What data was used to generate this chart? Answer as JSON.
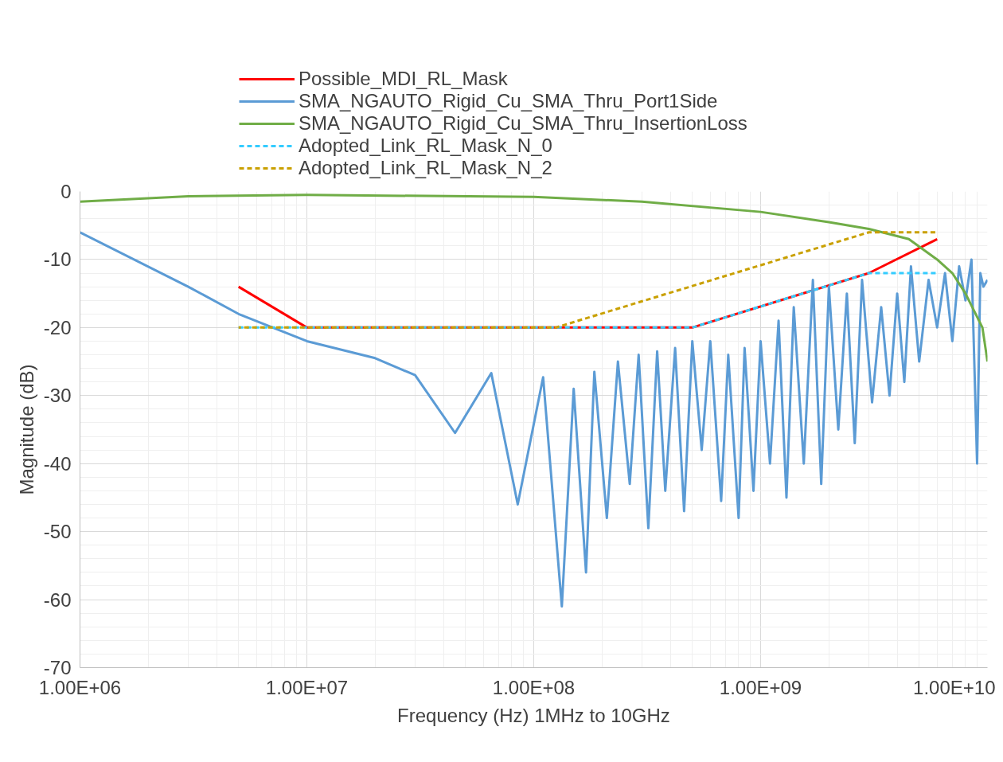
{
  "chart_data": {
    "type": "line",
    "xlabel": "Frequency (Hz) 1MHz to 10GHz",
    "ylabel": "Magnitude (dB)",
    "log": "x",
    "grid": true,
    "legend": "top",
    "marker": "none",
    "xlim": [
      1000000,
      10000000000
    ],
    "xticks": [
      {
        "value": 1000000,
        "label": "1.00E+06"
      },
      {
        "value": 10000000,
        "label": "1.00E+07"
      },
      {
        "value": 100000000,
        "label": "1.00E+08"
      },
      {
        "value": 1000000000,
        "label": "1.00E+09"
      },
      {
        "value": 10000000000,
        "label": "1.00E+10"
      }
    ],
    "ylim": [
      -70,
      0
    ],
    "yticks": [
      0,
      -10,
      -20,
      -30,
      -40,
      -50,
      -60,
      -70
    ],
    "series": [
      {
        "name": "Possible_MDI_RL_Mask",
        "color": "#ff0000",
        "line_style": "solid",
        "x": [
          5000000,
          10000000,
          500000000,
          3000000000,
          6000000000
        ],
        "values": [
          -14,
          -20,
          -20,
          -12,
          -7
        ]
      },
      {
        "name": "SMA_NGAUTO_Rigid_Cu_SMA_Thru_Port1Side",
        "color": "#5b9bd5",
        "line_style": "solid",
        "x": [
          1000000,
          3000000,
          5000000,
          10000000,
          20000000,
          30000000,
          45000000,
          65000000,
          85000000,
          110000000,
          133000000,
          150000000,
          170000000,
          185000000,
          210000000,
          235000000,
          265000000,
          290000000,
          320000000,
          350000000,
          380000000,
          420000000,
          460000000,
          500000000,
          550000000,
          600000000,
          670000000,
          720000000,
          800000000,
          850000000,
          930000000,
          1000000000,
          1100000000,
          1200000000,
          1300000000,
          1400000000,
          1550000000,
          1700000000,
          1850000000,
          2000000000,
          2200000000,
          2400000000,
          2600000000,
          2800000000,
          3100000000,
          3400000000,
          3700000000,
          4000000000,
          4300000000,
          4600000000,
          5000000000,
          5500000000,
          6000000000,
          6500000000,
          7000000000,
          7500000000,
          8000000000,
          8500000000,
          9000000000,
          9300000000,
          9600000000,
          10000000000
        ],
        "values": [
          -6,
          -14,
          -18,
          -22,
          -24.5,
          -27,
          -35.5,
          -26.7,
          -46,
          -27.3,
          -61,
          -29,
          -56,
          -26.5,
          -48,
          -25,
          -43,
          -24,
          -49.5,
          -23.5,
          -44,
          -23,
          -47,
          -22,
          -38,
          -22,
          -45.5,
          -24,
          -48,
          -23,
          -44,
          -22,
          -40,
          -19,
          -45,
          -17,
          -40,
          -13,
          -43,
          -14,
          -35,
          -15,
          -37,
          -13,
          -31,
          -17,
          -30,
          -15,
          -28,
          -11,
          -25,
          -13,
          -20,
          -12,
          -22,
          -11,
          -16,
          -10,
          -40,
          -12,
          -14,
          -13
        ]
      },
      {
        "name": "SMA_NGAUTO_Rigid_Cu_SMA_Thru_InsertionLoss",
        "color": "#70ad47",
        "line_style": "solid",
        "x": [
          1000000,
          3000000,
          10000000,
          100000000,
          300000000,
          1000000000,
          2000000000,
          3000000000,
          4500000000,
          6000000000,
          7000000000,
          8000000000,
          9500000000,
          10000000000
        ],
        "values": [
          -1.5,
          -0.7,
          -0.5,
          -0.8,
          -1.5,
          -3,
          -4.5,
          -5.5,
          -7,
          -10,
          -12,
          -15,
          -20,
          -25
        ]
      },
      {
        "name": "Adopted_Link_RL_Mask_N_0",
        "color": "#33ccff",
        "line_style": "dashed",
        "x": [
          5000000,
          500000000,
          3000000000,
          6000000000
        ],
        "values": [
          -20,
          -20,
          -12,
          -12
        ]
      },
      {
        "name": "Adopted_Link_RL_Mask_N_2",
        "color": "#c9a000",
        "line_style": "dashed",
        "x": [
          5000000,
          125000000,
          3000000000,
          6000000000
        ],
        "values": [
          -20,
          -20,
          -6,
          -6
        ]
      }
    ]
  }
}
